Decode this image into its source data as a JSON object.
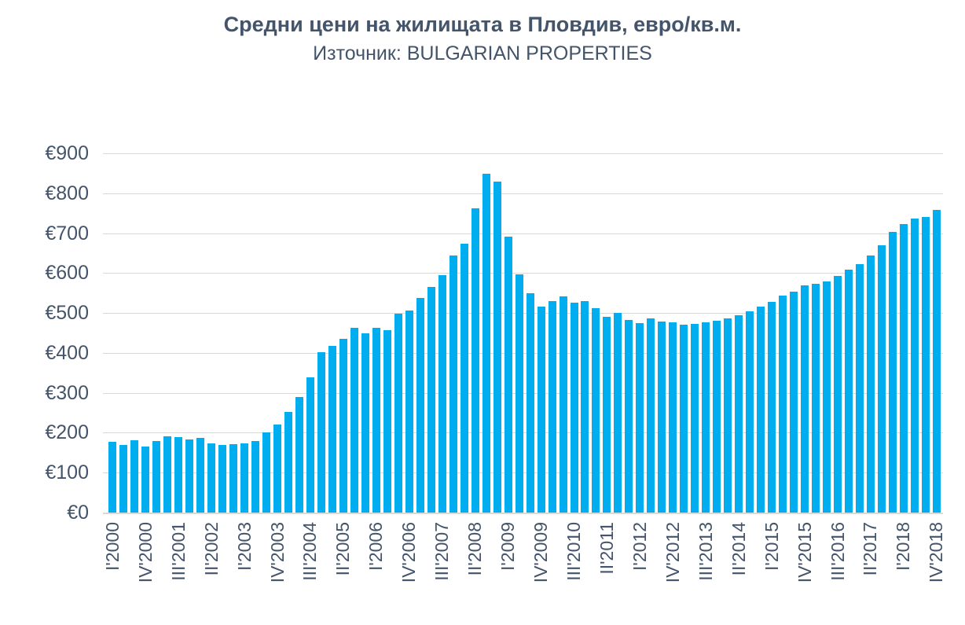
{
  "title": "Средни цени на жилищата в Пловдив, евро/кв.м.",
  "subtitle": "Източник: BULGARIAN PROPERTIES",
  "colors": {
    "bar": "#00AEEF",
    "text": "#44546A",
    "gridline": "#D9D9D9"
  },
  "chart_data": {
    "type": "bar",
    "title": "Средни цени на жилищата в Пловдив, евро/кв.м.",
    "subtitle": "Източник: BULGARIAN PROPERTIES",
    "ylabel": "",
    "xlabel": "",
    "ylim": [
      0,
      900
    ],
    "y_tick_interval": 100,
    "y_tick_prefix": "€",
    "x_tick_step": 3,
    "grid": true,
    "legend": "none",
    "categories": [
      "I'2000",
      "II'2000",
      "III'2000",
      "IV'2000",
      "I'2001",
      "II'2001",
      "III'2001",
      "IV'2001",
      "I'2002",
      "II'2002",
      "III'2002",
      "IV'2002",
      "I'2003",
      "II'2003",
      "III'2003",
      "IV'2003",
      "I'2004",
      "II'2004",
      "III'2004",
      "IV'2004",
      "I'2005",
      "II'2005",
      "III'2005",
      "IV'2005",
      "I'2006",
      "II'2006",
      "III'2006",
      "IV'2006",
      "I'2007",
      "II'2007",
      "III'2007",
      "IV'2007",
      "I'2008",
      "II'2008",
      "III'2008",
      "IV'2008",
      "I'2009",
      "II'2009",
      "III'2009",
      "IV'2009",
      "I'2010",
      "II'2010",
      "III'2010",
      "IV'2010",
      "I'2011",
      "II'2011",
      "III'2011",
      "IV'2011",
      "I'2012",
      "II'2012",
      "III'2012",
      "IV'2012",
      "I'2013",
      "II'2013",
      "III'2013",
      "IV'2013",
      "I'2014",
      "II'2014",
      "III'2014",
      "IV'2014",
      "I'2015",
      "II'2015",
      "III'2015",
      "IV'2015",
      "I'2016",
      "II'2016",
      "III'2016",
      "IV'2016",
      "I'2017",
      "II'2017",
      "III'2017",
      "IV'2017",
      "I'2018",
      "II'2018",
      "III'2018",
      "IV'2018"
    ],
    "values": [
      178,
      170,
      182,
      166,
      180,
      192,
      190,
      183,
      187,
      174,
      169,
      171,
      174,
      180,
      200,
      220,
      253,
      289,
      339,
      401,
      418,
      436,
      462,
      450,
      462,
      457,
      499,
      507,
      538,
      565,
      595,
      644,
      674,
      763,
      848,
      829,
      691,
      596,
      549,
      516,
      529,
      542,
      525,
      530,
      513,
      490,
      500,
      483,
      474,
      487,
      479,
      477,
      470,
      472,
      476,
      480,
      486,
      495,
      505,
      516,
      528,
      544,
      554,
      569,
      574,
      580,
      592,
      609,
      623,
      644,
      670,
      703,
      723,
      736,
      741,
      758
    ]
  }
}
